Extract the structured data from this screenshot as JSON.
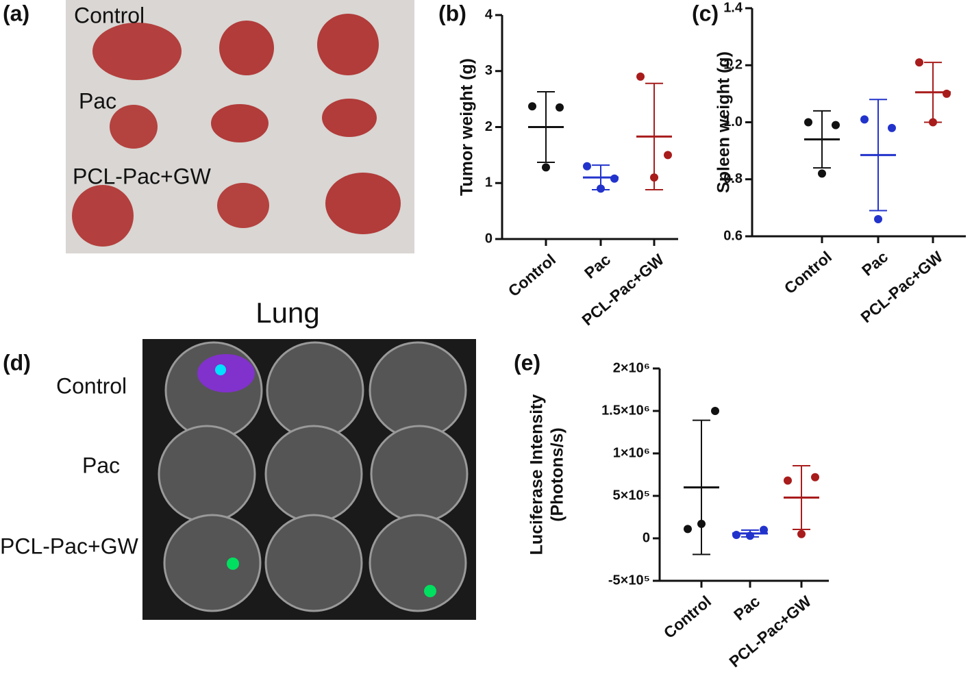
{
  "panels": {
    "a": {
      "label": "(a)",
      "rows": [
        "Control",
        "Pac",
        "PCL-Pac+GW"
      ]
    },
    "d": {
      "label": "(d)",
      "title": "Lung",
      "rows": [
        "Control",
        "Pac",
        "PCL-Pac+GW"
      ]
    }
  },
  "chart_data": [
    {
      "type": "dot",
      "panel_label": "(b)",
      "ylabel": [
        "Tumor weight (g)"
      ],
      "categories": [
        "Control",
        "Pac",
        "PCL-Pac+GW"
      ],
      "colors": [
        "#111111",
        "#2233cc",
        "#a81c1c"
      ],
      "points": [
        [
          2.37,
          2.35,
          1.28
        ],
        [
          1.3,
          1.08,
          0.9
        ],
        [
          2.9,
          1.5,
          1.1
        ]
      ],
      "means": [
        2.0,
        1.1,
        1.83
      ],
      "sd": [
        0.63,
        0.22,
        0.95
      ],
      "ylim": [
        0,
        4
      ],
      "yticks": [
        0,
        1,
        2,
        3,
        4
      ]
    },
    {
      "type": "dot",
      "panel_label": "(c)",
      "ylabel": [
        "Spleen weight (g)"
      ],
      "categories": [
        "Control",
        "Pac",
        "PCL-Pac+GW"
      ],
      "colors": [
        "#111111",
        "#2233cc",
        "#a81c1c"
      ],
      "points": [
        [
          1.0,
          0.99,
          0.82
        ],
        [
          1.01,
          0.98,
          0.66
        ],
        [
          1.21,
          1.1,
          1.0
        ]
      ],
      "means": [
        0.94,
        0.885,
        1.105
      ],
      "sd": [
        0.1,
        0.195,
        0.105
      ],
      "ylim": [
        0.6,
        1.4
      ],
      "yticks": [
        0.6,
        0.8,
        {
          "value": 1,
          "label": "1.0"
        },
        1.2,
        1.4
      ]
    },
    {
      "type": "dot",
      "panel_label": "(e)",
      "ylabel": [
        "Luciferase Intensity",
        "(Photons/s)"
      ],
      "categories": [
        "Control",
        "Pac",
        "PCL-Pac+GW"
      ],
      "colors": [
        "#111111",
        "#2233cc",
        "#a81c1c"
      ],
      "points": [
        [
          110000,
          1500000,
          170000
        ],
        [
          40000,
          100000,
          30000
        ],
        [
          680000,
          720000,
          50000
        ]
      ],
      "means": [
        600000,
        57000,
        480000
      ],
      "sd": [
        790000,
        40000,
        375000
      ],
      "ylim": [
        -500000,
        2000000
      ],
      "yticks": [
        {
          "value": -500000,
          "label": "-5×10⁵"
        },
        0,
        {
          "value": 500000,
          "label": "5×10⁵"
        },
        {
          "value": 1000000,
          "label": "1×10⁶"
        },
        {
          "value": 1500000,
          "label": "1.5×10⁶"
        },
        {
          "value": 2000000,
          "label": "2×10⁶"
        }
      ]
    }
  ]
}
